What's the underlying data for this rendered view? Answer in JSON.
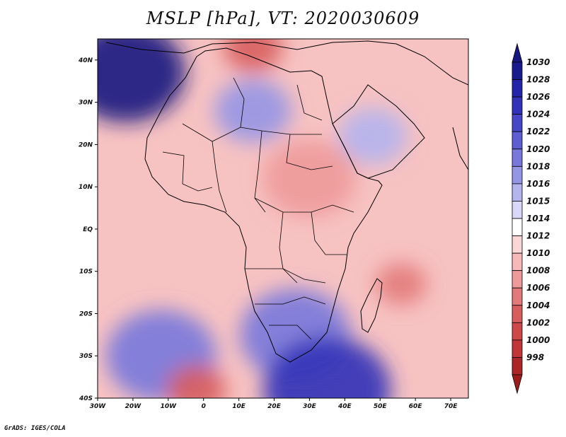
{
  "title": "MSLP [hPa], VT: 2020030609",
  "footer": "GrADS: IGES/COLA",
  "map": {
    "variable": "MSLP",
    "units": "hPa",
    "valid_time": "2020030609",
    "region": "Africa",
    "lon_range": [
      -30,
      75
    ],
    "lat_range": [
      -40,
      45
    ],
    "lon_ticks": [
      {
        "lon": -30,
        "label": "30W"
      },
      {
        "lon": -20,
        "label": "20W"
      },
      {
        "lon": -10,
        "label": "10W"
      },
      {
        "lon": 0,
        "label": "0"
      },
      {
        "lon": 10,
        "label": "10E"
      },
      {
        "lon": 20,
        "label": "20E"
      },
      {
        "lon": 30,
        "label": "30E"
      },
      {
        "lon": 40,
        "label": "40E"
      },
      {
        "lon": 50,
        "label": "50E"
      },
      {
        "lon": 60,
        "label": "60E"
      },
      {
        "lon": 70,
        "label": "70E"
      }
    ],
    "lat_ticks": [
      {
        "lat": 40,
        "label": "40N"
      },
      {
        "lat": 30,
        "label": "30N"
      },
      {
        "lat": 20,
        "label": "20N"
      },
      {
        "lat": 10,
        "label": "10N"
      },
      {
        "lat": 0,
        "label": "EQ"
      },
      {
        "lat": -10,
        "label": "10S"
      },
      {
        "lat": -20,
        "label": "20S"
      },
      {
        "lat": -30,
        "label": "30S"
      },
      {
        "lat": -40,
        "label": "40S"
      }
    ],
    "pressure_features": [
      {
        "name": "Azores High",
        "lon": -22,
        "lat": 37,
        "level": 1030
      },
      {
        "name": "Sahara High",
        "lon": 14,
        "lat": 28,
        "level": 1018
      },
      {
        "name": "Arabian High",
        "lon": 48,
        "lat": 22,
        "level": 1016
      },
      {
        "name": "South Africa High",
        "lon": 26,
        "lat": -25,
        "level": 1020
      },
      {
        "name": "South Atlantic High",
        "lon": -12,
        "lat": -30,
        "level": 1020
      },
      {
        "name": "Southern Ocean High",
        "lon": 35,
        "lat": -38,
        "level": 1026
      },
      {
        "name": "Mediterranean Low",
        "lon": 14,
        "lat": 43,
        "level": 1004
      },
      {
        "name": "Sudan Low",
        "lon": 30,
        "lat": 12,
        "level": 1008
      },
      {
        "name": "Indian Ocean Low",
        "lon": 56,
        "lat": -13,
        "level": 1006
      },
      {
        "name": "Agulhas Low",
        "lon": -2,
        "lat": -38,
        "level": 1004
      }
    ]
  },
  "colorbar": {
    "levels": [
      {
        "label": "1030",
        "color": "#1a1a8f"
      },
      {
        "label": "1028",
        "color": "#2424a8"
      },
      {
        "label": "1026",
        "color": "#3232b8"
      },
      {
        "label": "1024",
        "color": "#4646c6"
      },
      {
        "label": "1022",
        "color": "#5e5ed2"
      },
      {
        "label": "1020",
        "color": "#7878dc"
      },
      {
        "label": "1018",
        "color": "#9595e6"
      },
      {
        "label": "1016",
        "color": "#b4b4ef"
      },
      {
        "label": "1015",
        "color": "#d8d8f8"
      },
      {
        "label": "1014",
        "color": "#ffffff"
      },
      {
        "label": "1012",
        "color": "#fbd6d6"
      },
      {
        "label": "1010",
        "color": "#f6b8b8"
      },
      {
        "label": "1008",
        "color": "#ee9a9a"
      },
      {
        "label": "1006",
        "color": "#e37a7a"
      },
      {
        "label": "1004",
        "color": "#d85e5e"
      },
      {
        "label": "1002",
        "color": "#cd4848"
      },
      {
        "label": "1000",
        "color": "#c13636"
      },
      {
        "label": "998",
        "color": "#ab2626"
      }
    ],
    "max_color": "#17177f",
    "min_color": "#9c1c1c"
  }
}
